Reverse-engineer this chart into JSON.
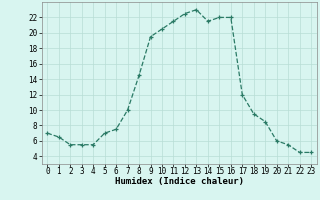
{
  "x": [
    0,
    1,
    2,
    3,
    4,
    5,
    6,
    7,
    8,
    9,
    10,
    11,
    12,
    13,
    14,
    15,
    16,
    17,
    18,
    19,
    20,
    21,
    22,
    23
  ],
  "y": [
    7,
    6.5,
    5.5,
    5.5,
    5.5,
    7,
    7.5,
    10,
    14.5,
    19.5,
    20.5,
    21.5,
    22.5,
    23,
    21.5,
    22,
    22,
    12,
    9.5,
    8.5,
    6,
    5.5,
    4.5,
    4.5
  ],
  "xlabel": "Humidex (Indice chaleur)",
  "xlim": [
    -0.5,
    23.5
  ],
  "ylim": [
    3,
    24
  ],
  "yticks": [
    4,
    6,
    8,
    10,
    12,
    14,
    16,
    18,
    20,
    22
  ],
  "xticks": [
    0,
    1,
    2,
    3,
    4,
    5,
    6,
    7,
    8,
    9,
    10,
    11,
    12,
    13,
    14,
    15,
    16,
    17,
    18,
    19,
    20,
    21,
    22,
    23
  ],
  "line_color": "#2a7a65",
  "bg_color": "#d8f5f0",
  "grid_color": "#b8ddd5",
  "label_fontsize": 6.5,
  "tick_fontsize": 5.5
}
